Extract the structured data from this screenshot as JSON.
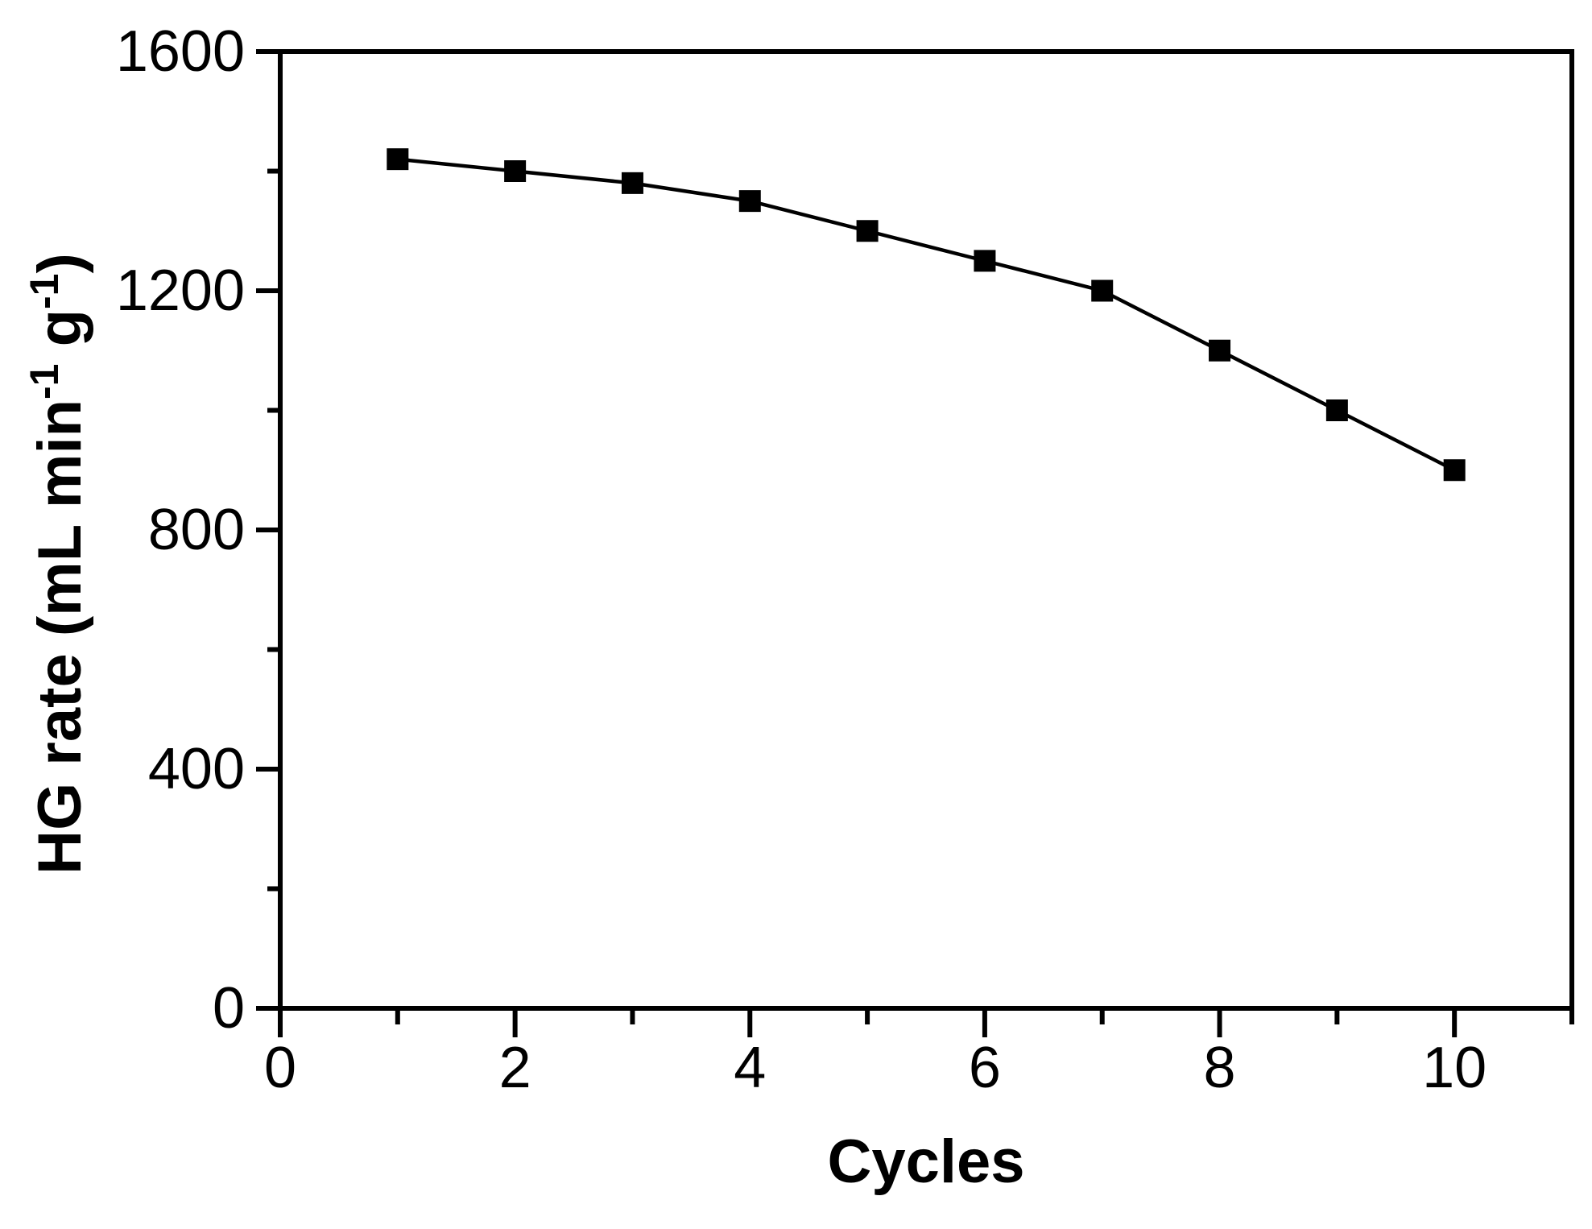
{
  "figure": {
    "background": "#ffffff",
    "foreground": "#000000"
  },
  "chart_data": {
    "type": "line",
    "title": "",
    "xlabel": "Cycles",
    "ylabel": "HG rate (mL min-1 g-1)",
    "ylabel_parts": [
      {
        "text": "HG rate (mL min",
        "sup": false
      },
      {
        "text": "-1",
        "sup": true
      },
      {
        "text": " g",
        "sup": false
      },
      {
        "text": "-1",
        "sup": true
      },
      {
        "text": ")",
        "sup": false
      }
    ],
    "series": [
      {
        "name": "HG rate",
        "x": [
          1,
          2,
          3,
          4,
          5,
          6,
          7,
          8,
          9,
          10
        ],
        "y": [
          1420,
          1400,
          1380,
          1350,
          1300,
          1250,
          1200,
          1100,
          1000,
          900
        ],
        "marker": "square",
        "marker_color": "#000000",
        "line_color": "#000000"
      }
    ],
    "xlim": [
      0,
      11
    ],
    "ylim": [
      0,
      1600
    ],
    "x_major_ticks": [
      0,
      2,
      4,
      6,
      8,
      10
    ],
    "x_minor_ticks": [
      1,
      3,
      5,
      7,
      9,
      11
    ],
    "y_major_ticks": [
      0,
      400,
      800,
      1200,
      1600
    ],
    "y_minor_ticks": [
      200,
      600,
      1000,
      1400
    ],
    "x_tick_labels": [
      "0",
      "2",
      "4",
      "6",
      "8",
      "10"
    ],
    "y_tick_labels": [
      "0",
      "400",
      "800",
      "1200",
      "1600"
    ],
    "grid": false,
    "legend": "none"
  }
}
